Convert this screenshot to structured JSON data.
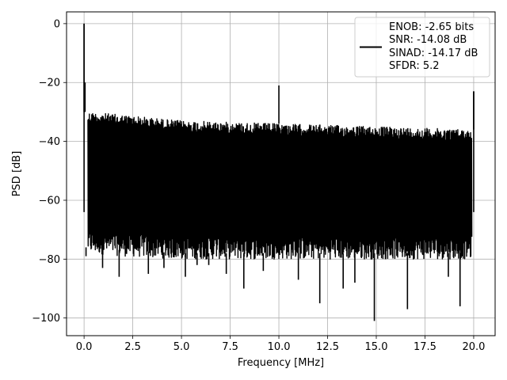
{
  "chart_data": {
    "type": "line",
    "xlabel": "Frequency [MHz]",
    "ylabel": "PSD [dB]",
    "xlim": [
      -0.9,
      21.1
    ],
    "ylim": [
      -106,
      4
    ],
    "x_ticks": [
      {
        "value": 0.0,
        "label": "0.0"
      },
      {
        "value": 2.5,
        "label": "2.5"
      },
      {
        "value": 5.0,
        "label": "5.0"
      },
      {
        "value": 7.5,
        "label": "7.5"
      },
      {
        "value": 10.0,
        "label": "10.0"
      },
      {
        "value": 12.5,
        "label": "12.5"
      },
      {
        "value": 15.0,
        "label": "15.0"
      },
      {
        "value": 17.5,
        "label": "17.5"
      },
      {
        "value": 20.0,
        "label": "20.0"
      }
    ],
    "y_ticks": [
      {
        "value": 0,
        "label": "0"
      },
      {
        "value": -20,
        "label": "−20"
      },
      {
        "value": -40,
        "label": "−40"
      },
      {
        "value": -60,
        "label": "−60"
      },
      {
        "value": -80,
        "label": "−80"
      },
      {
        "value": -100,
        "label": "−100"
      }
    ],
    "grid": true,
    "legend": {
      "placement": "top-right",
      "entries": [
        "ENOB: -2.65 bits",
        "SNR: -14.08 dB",
        "SINAD: -14.17 dB",
        "SFDR: 5.2"
      ]
    },
    "series": [
      {
        "color": "#000000",
        "noise_floor": {
          "x": [
            0.2,
            2.0,
            5.0,
            10.0,
            15.0,
            19.9
          ],
          "upper": [
            -30,
            -31,
            -33,
            -34,
            -35,
            -36
          ],
          "lower": [
            -76,
            -77,
            -78,
            -78,
            -78,
            -78
          ]
        },
        "spurs": [
          {
            "x": 0.0,
            "y": 0
          },
          {
            "x": 0.05,
            "y": -20
          },
          {
            "x": 10.0,
            "y": -21
          },
          {
            "x": 20.0,
            "y": -23
          }
        ],
        "dips": [
          {
            "x": 0.1,
            "y": -79
          },
          {
            "x": 0.95,
            "y": -83
          },
          {
            "x": 1.8,
            "y": -86
          },
          {
            "x": 3.3,
            "y": -85
          },
          {
            "x": 4.1,
            "y": -83
          },
          {
            "x": 5.2,
            "y": -86
          },
          {
            "x": 5.8,
            "y": -82
          },
          {
            "x": 6.4,
            "y": -82
          },
          {
            "x": 7.3,
            "y": -85
          },
          {
            "x": 8.2,
            "y": -90
          },
          {
            "x": 9.2,
            "y": -84
          },
          {
            "x": 11.0,
            "y": -87
          },
          {
            "x": 12.1,
            "y": -95
          },
          {
            "x": 13.3,
            "y": -90
          },
          {
            "x": 13.9,
            "y": -88
          },
          {
            "x": 14.9,
            "y": -101
          },
          {
            "x": 16.6,
            "y": -97
          },
          {
            "x": 18.7,
            "y": -86
          },
          {
            "x": 19.3,
            "y": -96
          }
        ]
      }
    ]
  }
}
